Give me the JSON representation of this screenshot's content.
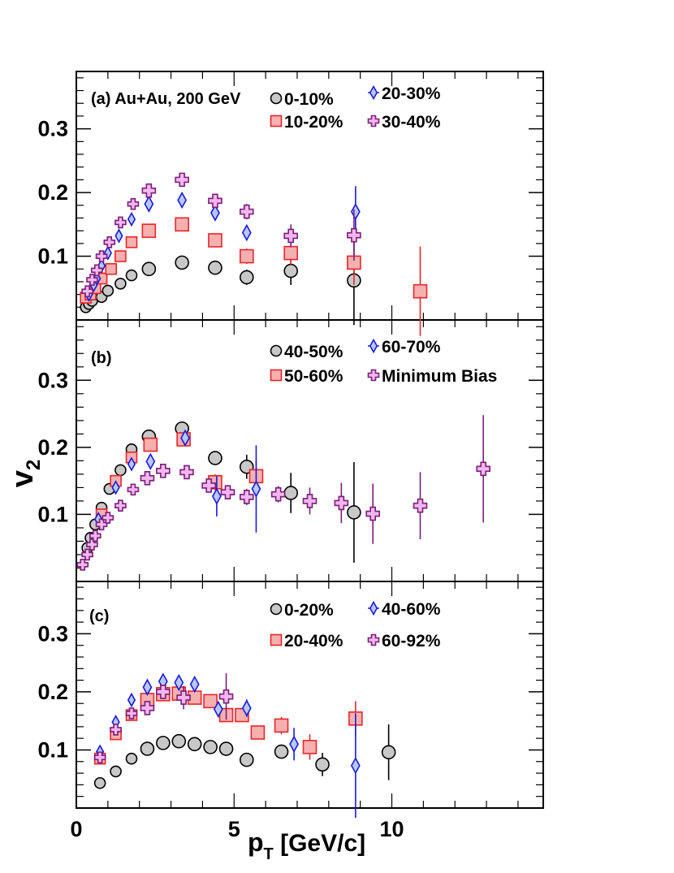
{
  "chart_data": {
    "type": "scatter",
    "x_axis": {
      "range": [
        0,
        14.8
      ],
      "tick_labels": [
        "0",
        "5",
        "10"
      ],
      "tick_values": [
        0,
        5,
        10
      ],
      "title": "p",
      "title_sub": "T",
      "title_unit": " [GeV/c]"
    },
    "y_axis": {
      "range": [
        0,
        0.39
      ],
      "tick_labels": [
        "0.1",
        "0.2",
        "0.3"
      ],
      "tick_values": [
        0.1,
        0.2,
        0.3
      ],
      "title": "v",
      "title_sub": "2"
    },
    "panels": [
      {
        "label": "(a) Au+Au, 200 GeV",
        "series": [
          {
            "name": "0-10%",
            "marker": "circle",
            "points": [
              [
                0.3,
                0.02,
                0.004
              ],
              [
                0.4,
                0.025,
                0.004
              ],
              [
                0.5,
                0.03,
                0.004
              ],
              [
                0.8,
                0.036,
                0.004
              ],
              [
                1.0,
                0.046,
                0.004
              ],
              [
                1.4,
                0.057,
                0.004
              ],
              [
                1.75,
                0.07,
                0.004
              ],
              [
                2.3,
                0.08,
                0.004
              ],
              [
                3.35,
                0.09,
                0.005
              ],
              [
                4.4,
                0.082,
                0.006
              ],
              [
                5.4,
                0.067,
                0.012
              ],
              [
                6.8,
                0.077,
                0.022
              ],
              [
                8.8,
                0.062,
                0.07
              ]
            ]
          },
          {
            "name": "10-20%",
            "marker": "square",
            "points": [
              [
                0.3,
                0.035,
                0.004
              ],
              [
                0.45,
                0.04,
                0.004
              ],
              [
                0.6,
                0.05,
                0.004
              ],
              [
                0.8,
                0.065,
                0.004
              ],
              [
                1.1,
                0.08,
                0.004
              ],
              [
                1.4,
                0.1,
                0.004
              ],
              [
                1.75,
                0.122,
                0.004
              ],
              [
                2.3,
                0.14,
                0.005
              ],
              [
                3.35,
                0.15,
                0.006
              ],
              [
                4.4,
                0.125,
                0.008
              ],
              [
                5.4,
                0.1,
                0.012
              ],
              [
                6.8,
                0.105,
                0.018
              ],
              [
                8.8,
                0.09,
                0.035
              ],
              [
                10.9,
                0.045,
                0.07
              ]
            ]
          },
          {
            "name": "20-30%",
            "marker": "diamond",
            "points": [
              [
                0.4,
                0.04,
                0.004
              ],
              [
                0.55,
                0.055,
                0.004
              ],
              [
                0.65,
                0.065,
                0.004
              ],
              [
                0.8,
                0.085,
                0.004
              ],
              [
                1.0,
                0.105,
                0.004
              ],
              [
                1.35,
                0.132,
                0.004
              ],
              [
                1.75,
                0.158,
                0.004
              ],
              [
                2.3,
                0.182,
                0.005
              ],
              [
                3.35,
                0.188,
                0.006
              ],
              [
                4.4,
                0.168,
                0.008
              ],
              [
                5.4,
                0.137,
                0.012
              ],
              [
                8.85,
                0.17,
                0.04
              ]
            ]
          },
          {
            "name": "30-40%",
            "marker": "cross",
            "points": [
              [
                0.35,
                0.045,
                0.004
              ],
              [
                0.5,
                0.063,
                0.004
              ],
              [
                0.65,
                0.078,
                0.004
              ],
              [
                0.8,
                0.1,
                0.004
              ],
              [
                1.05,
                0.122,
                0.004
              ],
              [
                1.4,
                0.153,
                0.004
              ],
              [
                1.8,
                0.182,
                0.005
              ],
              [
                2.3,
                0.203,
                0.005
              ],
              [
                3.35,
                0.22,
                0.006
              ],
              [
                4.4,
                0.187,
                0.008
              ],
              [
                5.4,
                0.17,
                0.012
              ],
              [
                6.8,
                0.132,
                0.018
              ],
              [
                8.8,
                0.133,
                0.04
              ]
            ]
          }
        ]
      },
      {
        "label": "(b)",
        "series": [
          {
            "name": "40-50%",
            "marker": "circle",
            "points": [
              [
                0.35,
                0.05,
                0.004
              ],
              [
                0.45,
                0.065,
                0.004
              ],
              [
                0.6,
                0.085,
                0.004
              ],
              [
                0.8,
                0.11,
                0.004
              ],
              [
                1.05,
                0.138,
                0.004
              ],
              [
                1.4,
                0.166,
                0.004
              ],
              [
                1.75,
                0.197,
                0.005
              ],
              [
                2.3,
                0.216,
                0.005
              ],
              [
                3.35,
                0.228,
                0.006
              ],
              [
                4.4,
                0.184,
                0.008
              ],
              [
                5.4,
                0.171,
                0.018
              ],
              [
                6.8,
                0.132,
                0.03
              ],
              [
                8.8,
                0.103,
                0.075
              ]
            ]
          },
          {
            "name": "50-60%",
            "marker": "square",
            "points": [
              [
                0.8,
                0.1,
                0.004
              ],
              [
                1.25,
                0.15,
                0.005
              ],
              [
                1.75,
                0.185,
                0.005
              ],
              [
                2.35,
                0.204,
                0.006
              ],
              [
                3.4,
                0.212,
                0.008
              ],
              [
                4.4,
                0.148,
                0.012
              ],
              [
                5.7,
                0.157,
                0.025
              ]
            ]
          },
          {
            "name": "60-70%",
            "marker": "diamond",
            "points": [
              [
                0.7,
                0.093,
                0.006
              ],
              [
                1.25,
                0.14,
                0.006
              ],
              [
                1.75,
                0.175,
                0.006
              ],
              [
                2.35,
                0.179,
                0.008
              ],
              [
                3.45,
                0.214,
                0.01
              ],
              [
                4.45,
                0.127,
                0.03
              ],
              [
                5.7,
                0.138,
                0.065
              ]
            ]
          },
          {
            "name": "Minimum Bias",
            "marker": "cross",
            "points": [
              [
                0.2,
                0.025,
                0.003
              ],
              [
                0.35,
                0.04,
                0.003
              ],
              [
                0.5,
                0.055,
                0.003
              ],
              [
                0.6,
                0.068,
                0.003
              ],
              [
                0.8,
                0.085,
                0.003
              ],
              [
                1.0,
                0.095,
                0.003
              ],
              [
                1.4,
                0.113,
                0.003
              ],
              [
                1.8,
                0.137,
                0.004
              ],
              [
                2.25,
                0.154,
                0.004
              ],
              [
                2.75,
                0.165,
                0.005
              ],
              [
                3.5,
                0.163,
                0.006
              ],
              [
                4.2,
                0.143,
                0.008
              ],
              [
                4.8,
                0.133,
                0.01
              ],
              [
                5.4,
                0.126,
                0.012
              ],
              [
                6.4,
                0.13,
                0.012
              ],
              [
                7.4,
                0.12,
                0.02
              ],
              [
                8.4,
                0.117,
                0.03
              ],
              [
                9.4,
                0.101,
                0.045
              ],
              [
                10.9,
                0.113,
                0.05
              ],
              [
                12.9,
                0.168,
                0.08
              ]
            ]
          }
        ]
      },
      {
        "label": "(c)",
        "series": [
          {
            "name": "0-20%",
            "marker": "circle",
            "points": [
              [
                0.75,
                0.043,
                0.004
              ],
              [
                1.25,
                0.063,
                0.004
              ],
              [
                1.75,
                0.085,
                0.004
              ],
              [
                2.25,
                0.102,
                0.004
              ],
              [
                2.75,
                0.112,
                0.004
              ],
              [
                3.25,
                0.115,
                0.004
              ],
              [
                3.75,
                0.11,
                0.004
              ],
              [
                4.25,
                0.105,
                0.004
              ],
              [
                4.75,
                0.102,
                0.004
              ],
              [
                5.4,
                0.083,
                0.006
              ],
              [
                6.5,
                0.097,
                0.01
              ],
              [
                7.8,
                0.075,
                0.02
              ],
              [
                9.9,
                0.096,
                0.048
              ]
            ]
          },
          {
            "name": "20-40%",
            "marker": "square",
            "points": [
              [
                0.75,
                0.085,
                0.005
              ],
              [
                1.25,
                0.127,
                0.005
              ],
              [
                1.75,
                0.16,
                0.005
              ],
              [
                2.25,
                0.186,
                0.005
              ],
              [
                2.75,
                0.196,
                0.006
              ],
              [
                3.25,
                0.197,
                0.006
              ],
              [
                3.75,
                0.19,
                0.006
              ],
              [
                4.25,
                0.184,
                0.007
              ],
              [
                4.75,
                0.16,
                0.008
              ],
              [
                5.25,
                0.16,
                0.009
              ],
              [
                5.75,
                0.13,
                0.012
              ],
              [
                6.5,
                0.142,
                0.015
              ],
              [
                7.4,
                0.105,
                0.022
              ],
              [
                8.85,
                0.154,
                0.03
              ]
            ]
          },
          {
            "name": "40-60%",
            "marker": "diamond",
            "points": [
              [
                0.75,
                0.097,
                0.006
              ],
              [
                1.25,
                0.148,
                0.006
              ],
              [
                1.75,
                0.186,
                0.006
              ],
              [
                2.25,
                0.208,
                0.006
              ],
              [
                2.75,
                0.218,
                0.007
              ],
              [
                3.25,
                0.216,
                0.008
              ],
              [
                3.75,
                0.213,
                0.008
              ],
              [
                4.5,
                0.17,
                0.012
              ],
              [
                5.4,
                0.172,
                0.015
              ],
              [
                6.9,
                0.11,
                0.028
              ],
              [
                8.85,
                0.073,
                0.09
              ]
            ]
          },
          {
            "name": "60-92%",
            "marker": "cross",
            "points": [
              [
                0.75,
                0.087,
                0.006
              ],
              [
                1.25,
                0.135,
                0.006
              ],
              [
                1.75,
                0.163,
                0.008
              ],
              [
                2.25,
                0.172,
                0.01
              ],
              [
                2.75,
                0.2,
                0.012
              ],
              [
                3.4,
                0.19,
                0.02
              ],
              [
                4.75,
                0.192,
                0.04
              ]
            ]
          }
        ]
      }
    ]
  },
  "styles": {
    "circle": {
      "stroke": "#000000",
      "fill": "#c8c8c8"
    },
    "square": {
      "stroke": "#e8262a",
      "fill": "#f7b0b0"
    },
    "diamond": {
      "stroke": "#1a1adb",
      "fill": "#b8c8f6"
    },
    "cross": {
      "stroke": "#7a1f78",
      "fill": "#f2b6ef"
    }
  }
}
